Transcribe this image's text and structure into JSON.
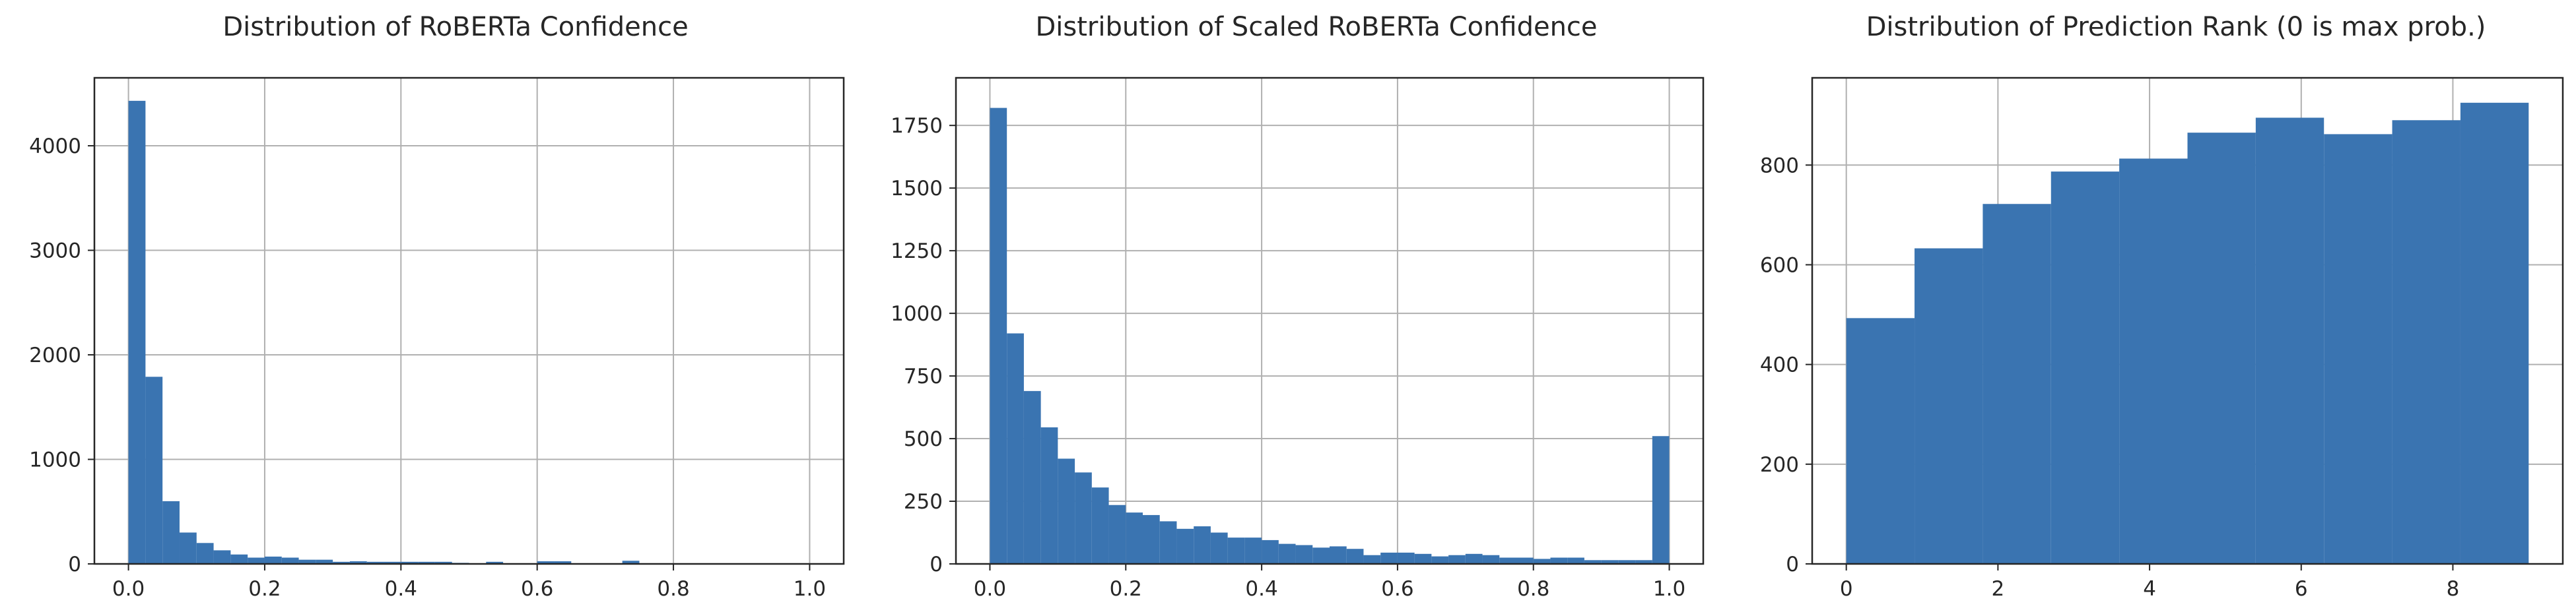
{
  "chart_data": [
    {
      "type": "bar",
      "subtype": "histogram",
      "title": "Distribution of RoBERTa Confidence",
      "xlabel": "",
      "ylabel": "",
      "xlim": [
        -0.05,
        1.05
      ],
      "ylim": [
        0,
        4650
      ],
      "xticks": [
        0.0,
        0.2,
        0.4,
        0.6,
        0.8,
        1.0
      ],
      "xtick_labels": [
        "0.0",
        "0.2",
        "0.4",
        "0.6",
        "0.8",
        "1.0"
      ],
      "yticks": [
        0,
        1000,
        2000,
        3000,
        4000
      ],
      "ytick_labels": [
        "0",
        "1000",
        "2000",
        "3000",
        "4000"
      ],
      "bin_edges": [
        0.0,
        0.025,
        0.05,
        0.075,
        0.1,
        0.125,
        0.15,
        0.175,
        0.2,
        0.225,
        0.25,
        0.275,
        0.3,
        0.325,
        0.35,
        0.375,
        0.4,
        0.425,
        0.45,
        0.475,
        0.5,
        0.525,
        0.55,
        0.575,
        0.6,
        0.625,
        0.65,
        0.675,
        0.7,
        0.725,
        0.75
      ],
      "values": [
        4430,
        1790,
        600,
        300,
        200,
        130,
        90,
        60,
        70,
        60,
        40,
        40,
        20,
        25,
        20,
        20,
        20,
        20,
        20,
        10,
        5,
        20,
        5,
        5,
        25,
        25,
        5,
        5,
        5,
        30
      ],
      "grid": true,
      "legend": "none",
      "bar_color": "#3a74b1"
    },
    {
      "type": "bar",
      "subtype": "histogram",
      "title": "Distribution of Scaled RoBERTa Confidence",
      "xlabel": "",
      "ylabel": "",
      "xlim": [
        -0.05,
        1.05
      ],
      "ylim": [
        0,
        1940
      ],
      "xticks": [
        0.0,
        0.2,
        0.4,
        0.6,
        0.8,
        1.0
      ],
      "xtick_labels": [
        "0.0",
        "0.2",
        "0.4",
        "0.6",
        "0.8",
        "1.0"
      ],
      "yticks": [
        0,
        250,
        500,
        750,
        1000,
        1250,
        1500,
        1750
      ],
      "ytick_labels": [
        "0",
        "250",
        "500",
        "750",
        "1000",
        "1250",
        "1500",
        "1750"
      ],
      "bin_edges": [
        0.0,
        0.025,
        0.05,
        0.075,
        0.1,
        0.125,
        0.15,
        0.175,
        0.2,
        0.225,
        0.25,
        0.275,
        0.3,
        0.325,
        0.35,
        0.375,
        0.4,
        0.425,
        0.45,
        0.475,
        0.5,
        0.525,
        0.55,
        0.575,
        0.6,
        0.625,
        0.65,
        0.675,
        0.7,
        0.725,
        0.75,
        0.775,
        0.8,
        0.825,
        0.85,
        0.875,
        0.9,
        0.925,
        0.95,
        0.975,
        1.0
      ],
      "values": [
        1820,
        920,
        690,
        545,
        420,
        365,
        305,
        235,
        205,
        195,
        170,
        140,
        150,
        125,
        105,
        105,
        95,
        80,
        75,
        65,
        70,
        60,
        35,
        45,
        45,
        40,
        30,
        35,
        40,
        35,
        25,
        25,
        20,
        25,
        25,
        15,
        15,
        15,
        15,
        510
      ],
      "grid": true,
      "legend": "none",
      "bar_color": "#3a74b1"
    },
    {
      "type": "bar",
      "subtype": "histogram",
      "title": "Distribution of Prediction Rank (0 is max prob.)",
      "xlabel": "",
      "ylabel": "",
      "xlim": [
        -0.45,
        9.45
      ],
      "ylim": [
        0,
        975
      ],
      "xticks": [
        0,
        2,
        4,
        6,
        8
      ],
      "xtick_labels": [
        "0",
        "2",
        "4",
        "6",
        "8"
      ],
      "yticks": [
        0,
        200,
        400,
        600,
        800
      ],
      "ytick_labels": [
        "0",
        "200",
        "400",
        "600",
        "800"
      ],
      "bin_edges": [
        0.0,
        0.9,
        1.8,
        2.7,
        3.6,
        4.5,
        5.4,
        6.3,
        7.2,
        8.1,
        9.0
      ],
      "values": [
        493,
        633,
        722,
        787,
        813,
        865,
        895,
        862,
        890,
        925
      ],
      "grid": true,
      "legend": "none",
      "bar_color": "#3a74b1"
    }
  ]
}
